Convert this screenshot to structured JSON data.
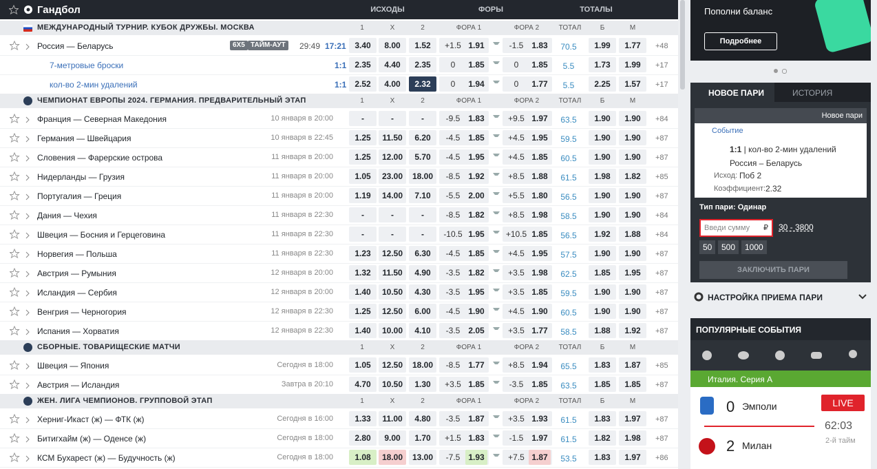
{
  "header": {
    "title": "Гандбол",
    "groups": [
      "ИСХОДЫ",
      "ФОРЫ",
      "ТОТАЛЫ"
    ]
  },
  "table_columns": [
    "1",
    "X",
    "2",
    "ФОРА 1",
    "ФОРА 2",
    "ТОТАЛ",
    "Б",
    "М"
  ],
  "sections": [
    {
      "title": "МЕЖДУНАРОДНЫЙ ТУРНИР. КУБОК ДРУЖБЫ. МОСКВА",
      "rows": [
        {
          "name": "Россия — Беларусь",
          "format": "6Х5",
          "status": "ТАЙМ-АУТ",
          "clock": "29:49",
          "game_time": "17:21",
          "odds": [
            "3.40",
            "8.00",
            "1.52"
          ],
          "fora1": [
            "+1.5",
            "1.91"
          ],
          "fora2": [
            "-1.5",
            "1.83"
          ],
          "total": [
            "70.5",
            "1.99",
            "1.77"
          ],
          "more": "+48",
          "markets": [
            {
              "name": "7-метровые броски",
              "score": "1:1",
              "odds": [
                "2.35",
                "4.40",
                "2.35"
              ],
              "fora1": [
                "0",
                "1.85"
              ],
              "fora2": [
                "0",
                "1.85"
              ],
              "total": [
                "5.5",
                "1.73",
                "1.99"
              ],
              "more": "+17"
            },
            {
              "name": "кол-во 2-мин удалений",
              "score": "1:1",
              "odds": [
                "2.52",
                "4.00",
                "2.32"
              ],
              "fora1": [
                "0",
                "1.94"
              ],
              "fora2": [
                "0",
                "1.77"
              ],
              "total": [
                "5.5",
                "2.25",
                "1.57"
              ],
              "more": "+17",
              "selected": [
                "odds.2"
              ]
            }
          ]
        }
      ]
    },
    {
      "title": "ЧЕМПИОНАТ ЕВРОПЫ 2024. ГЕРМАНИЯ. ПРЕДВАРИТЕЛЬНЫЙ ЭТАП",
      "rows": [
        {
          "name": "Франция — Северная Македония",
          "time": "10 января в 20:00",
          "odds": [
            "-",
            "-",
            "-"
          ],
          "fora1": [
            "-9.5",
            "1.83"
          ],
          "fora2": [
            "+9.5",
            "1.97"
          ],
          "total": [
            "63.5",
            "1.90",
            "1.90"
          ],
          "more": "+84"
        },
        {
          "name": "Германия — Швейцария",
          "time": "10 января в 22:45",
          "odds": [
            "1.25",
            "11.50",
            "6.20"
          ],
          "fora1": [
            "-4.5",
            "1.85"
          ],
          "fora2": [
            "+4.5",
            "1.95"
          ],
          "total": [
            "59.5",
            "1.90",
            "1.90"
          ],
          "more": "+87"
        },
        {
          "name": "Словения — Фарерские острова",
          "time": "11 января в 20:00",
          "odds": [
            "1.25",
            "12.00",
            "5.70"
          ],
          "fora1": [
            "-4.5",
            "1.95"
          ],
          "fora2": [
            "+4.5",
            "1.85"
          ],
          "total": [
            "60.5",
            "1.90",
            "1.90"
          ],
          "more": "+87"
        },
        {
          "name": "Нидерланды — Грузия",
          "time": "11 января в 20:00",
          "odds": [
            "1.05",
            "23.00",
            "18.00"
          ],
          "fora1": [
            "-8.5",
            "1.92"
          ],
          "fora2": [
            "+8.5",
            "1.88"
          ],
          "total": [
            "61.5",
            "1.98",
            "1.82"
          ],
          "more": "+85"
        },
        {
          "name": "Португалия — Греция",
          "time": "11 января в 20:00",
          "odds": [
            "1.19",
            "14.00",
            "7.10"
          ],
          "fora1": [
            "-5.5",
            "2.00"
          ],
          "fora2": [
            "+5.5",
            "1.80"
          ],
          "total": [
            "56.5",
            "1.90",
            "1.90"
          ],
          "more": "+87"
        },
        {
          "name": "Дания — Чехия",
          "time": "11 января в 22:30",
          "odds": [
            "-",
            "-",
            "-"
          ],
          "fora1": [
            "-8.5",
            "1.82"
          ],
          "fora2": [
            "+8.5",
            "1.98"
          ],
          "total": [
            "58.5",
            "1.90",
            "1.90"
          ],
          "more": "+84"
        },
        {
          "name": "Швеция — Босния и Герцеговина",
          "time": "11 января в 22:30",
          "odds": [
            "-",
            "-",
            "-"
          ],
          "fora1": [
            "-10.5",
            "1.95"
          ],
          "fora2": [
            "+10.5",
            "1.85"
          ],
          "total": [
            "56.5",
            "1.92",
            "1.88"
          ],
          "more": "+84"
        },
        {
          "name": "Норвегия — Польша",
          "time": "11 января в 22:30",
          "odds": [
            "1.23",
            "12.50",
            "6.30"
          ],
          "fora1": [
            "-4.5",
            "1.85"
          ],
          "fora2": [
            "+4.5",
            "1.95"
          ],
          "total": [
            "57.5",
            "1.90",
            "1.90"
          ],
          "more": "+87"
        },
        {
          "name": "Австрия — Румыния",
          "time": "12 января в 20:00",
          "odds": [
            "1.32",
            "11.50",
            "4.90"
          ],
          "fora1": [
            "-3.5",
            "1.82"
          ],
          "fora2": [
            "+3.5",
            "1.98"
          ],
          "total": [
            "62.5",
            "1.85",
            "1.95"
          ],
          "more": "+87"
        },
        {
          "name": "Исландия — Сербия",
          "time": "12 января в 20:00",
          "odds": [
            "1.40",
            "10.50",
            "4.30"
          ],
          "fora1": [
            "-3.5",
            "1.95"
          ],
          "fora2": [
            "+3.5",
            "1.85"
          ],
          "total": [
            "59.5",
            "1.90",
            "1.90"
          ],
          "more": "+87"
        },
        {
          "name": "Венгрия — Черногория",
          "time": "12 января в 22:30",
          "odds": [
            "1.25",
            "12.50",
            "6.00"
          ],
          "fora1": [
            "-4.5",
            "1.90"
          ],
          "fora2": [
            "+4.5",
            "1.90"
          ],
          "total": [
            "60.5",
            "1.90",
            "1.90"
          ],
          "more": "+87"
        },
        {
          "name": "Испания — Хорватия",
          "time": "12 января в 22:30",
          "odds": [
            "1.40",
            "10.00",
            "4.10"
          ],
          "fora1": [
            "-3.5",
            "2.05"
          ],
          "fora2": [
            "+3.5",
            "1.77"
          ],
          "total": [
            "58.5",
            "1.88",
            "1.92"
          ],
          "more": "+87"
        }
      ]
    },
    {
      "title": "СБОРНЫЕ. ТОВАРИЩЕСКИЕ МАТЧИ",
      "rows": [
        {
          "name": "Швеция — Япония",
          "time": "Сегодня в 18:00",
          "odds": [
            "1.05",
            "12.50",
            "18.00"
          ],
          "fora1": [
            "-8.5",
            "1.77"
          ],
          "fora2": [
            "+8.5",
            "1.94"
          ],
          "total": [
            "65.5",
            "1.83",
            "1.87"
          ],
          "more": "+85"
        },
        {
          "name": "Австрия — Исландия",
          "time": "Завтра в 20:10",
          "odds": [
            "4.70",
            "10.50",
            "1.30"
          ],
          "fora1": [
            "+3.5",
            "1.85"
          ],
          "fora2": [
            "-3.5",
            "1.85"
          ],
          "total": [
            "63.5",
            "1.85",
            "1.85"
          ],
          "more": "+87"
        }
      ]
    },
    {
      "title": "ЖЕН. ЛИГА ЧЕМПИОНОВ. ГРУППОВОЙ ЭТАП",
      "rows": [
        {
          "name": "Херниг-Икаст (ж) — ФТК (ж)",
          "time": "Сегодня в 16:00",
          "odds": [
            "1.33",
            "11.00",
            "4.80"
          ],
          "fora1": [
            "-3.5",
            "1.87"
          ],
          "fora2": [
            "+3.5",
            "1.93"
          ],
          "total": [
            "61.5",
            "1.83",
            "1.97"
          ],
          "more": "+87"
        },
        {
          "name": "Битигхайм (ж) — Оденсе (ж)",
          "time": "Сегодня в 18:00",
          "odds": [
            "2.80",
            "9.00",
            "1.70"
          ],
          "fora1": [
            "+1.5",
            "1.83"
          ],
          "fora2": [
            "-1.5",
            "1.97"
          ],
          "total": [
            "61.5",
            "1.82",
            "1.98"
          ],
          "more": "+87"
        },
        {
          "name": "КСМ Бухарест (ж) — Будучность (ж)",
          "time": "Сегодня в 18:00",
          "odds": [
            "1.08",
            "18.00",
            "13.00"
          ],
          "fora1": [
            "-7.5",
            "1.93"
          ],
          "fora2": [
            "+7.5",
            "1.87"
          ],
          "total": [
            "53.5",
            "1.83",
            "1.97"
          ],
          "more": "+86",
          "up": [
            "odds.0",
            "fora1.1"
          ],
          "down": [
            "odds.1",
            "fora2.1"
          ]
        }
      ]
    }
  ],
  "banner": {
    "text": "Пополни баланс",
    "button": "Подробнее"
  },
  "betslip": {
    "tabs": [
      "НОВОЕ ПАРИ",
      "ИСТОРИЯ"
    ],
    "card_title": "Новое пари",
    "event_label": "Событие",
    "score": "1:1",
    "event": "кол-во 2-мин удалений Россия – Беларусь",
    "outcome_label": "Исход:",
    "outcome": "Поб 2",
    "coef_label": "Коэффициент:",
    "coef": "2.32",
    "bet_type": "Тип пари: Одинар",
    "placeholder": "Введи сумму",
    "currency": "₽",
    "range": "30 - 3800",
    "chips": [
      "50",
      "500",
      "1000"
    ],
    "submit": "ЗАКЛЮЧИТЬ ПАРИ",
    "settings": "НАСТРОЙКА ПРИЕМА ПАРИ"
  },
  "popular": {
    "title": "ПОПУЛЯРНЫЕ СОБЫТИЯ",
    "league": "Италия. Серия А",
    "live": "LIVE",
    "team1": {
      "score": "0",
      "name": "Эмполи"
    },
    "team2": {
      "score": "2",
      "name": "Милан"
    },
    "clock": "62:03",
    "period": "2-й тайм"
  }
}
